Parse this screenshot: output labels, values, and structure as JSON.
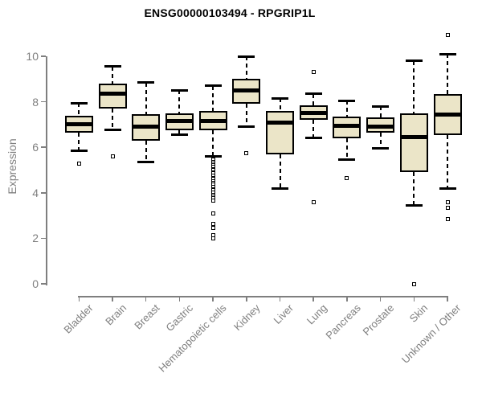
{
  "chart_data": {
    "type": "box",
    "title": "ENSG00000103494 - RPGRIP1L",
    "ylabel": "Expression",
    "xlabel": "",
    "ylim": [
      0,
      10
    ],
    "yticks": [
      0,
      2,
      4,
      6,
      8,
      10
    ],
    "grid": false,
    "legend_position": "none",
    "categories": [
      "Bladder",
      "Brain",
      "Breast",
      "Gastric",
      "Hematopoietic cells",
      "Kidney",
      "Liver",
      "Lung",
      "Pancreas",
      "Prostate",
      "Skin",
      "Unknown / Other"
    ],
    "boxes": [
      {
        "category": "Bladder",
        "whisker_low": 5.85,
        "q1": 6.65,
        "median": 7.0,
        "q3": 7.4,
        "whisker_high": 7.95,
        "outliers": [
          5.3
        ]
      },
      {
        "category": "Brain",
        "whisker_low": 6.75,
        "q1": 7.7,
        "median": 8.35,
        "q3": 8.8,
        "whisker_high": 9.55,
        "outliers": [
          5.6
        ]
      },
      {
        "category": "Breast",
        "whisker_low": 5.35,
        "q1": 6.3,
        "median": 6.9,
        "q3": 7.45,
        "whisker_high": 8.85,
        "outliers": []
      },
      {
        "category": "Gastric",
        "whisker_low": 6.55,
        "q1": 6.75,
        "median": 7.15,
        "q3": 7.5,
        "whisker_high": 8.5,
        "outliers": []
      },
      {
        "category": "Hematopoietic cells",
        "whisker_low": 5.6,
        "q1": 6.75,
        "median": 7.15,
        "q3": 7.6,
        "whisker_high": 8.7,
        "outliers": [
          5.45,
          5.35,
          5.3,
          5.2,
          5.15,
          5.05,
          5.0,
          4.9,
          4.85,
          4.75,
          4.65,
          4.6,
          4.5,
          4.45,
          4.35,
          4.25,
          4.15,
          4.1,
          4.0,
          3.9,
          3.85,
          3.75,
          3.65,
          3.1,
          2.65,
          2.45,
          2.15,
          2.0
        ]
      },
      {
        "category": "Kidney",
        "whisker_low": 6.9,
        "q1": 7.9,
        "median": 8.5,
        "q3": 9.0,
        "whisker_high": 10.0,
        "outliers": [
          5.75
        ]
      },
      {
        "category": "Liver",
        "whisker_low": 4.2,
        "q1": 5.7,
        "median": 7.1,
        "q3": 7.6,
        "whisker_high": 8.15,
        "outliers": []
      },
      {
        "category": "Lung",
        "whisker_low": 6.4,
        "q1": 7.2,
        "median": 7.5,
        "q3": 7.85,
        "whisker_high": 8.35,
        "outliers": [
          9.3,
          3.6
        ]
      },
      {
        "category": "Pancreas",
        "whisker_low": 5.45,
        "q1": 6.4,
        "median": 6.95,
        "q3": 7.35,
        "whisker_high": 8.05,
        "outliers": [
          4.65
        ]
      },
      {
        "category": "Prostate",
        "whisker_low": 5.95,
        "q1": 6.65,
        "median": 6.9,
        "q3": 7.3,
        "whisker_high": 7.8,
        "outliers": []
      },
      {
        "category": "Skin",
        "whisker_low": 3.45,
        "q1": 4.9,
        "median": 6.45,
        "q3": 7.5,
        "whisker_high": 9.8,
        "outliers": [
          0.0
        ]
      },
      {
        "category": "Unknown / Other",
        "whisker_low": 4.2,
        "q1": 6.55,
        "median": 7.45,
        "q3": 8.35,
        "whisker_high": 10.1,
        "outliers": [
          10.95,
          3.6,
          3.35,
          2.85
        ]
      }
    ],
    "colors": {
      "box_fill": "#EBE5C8",
      "box_border": "#000000",
      "median": "#000000",
      "whisker": "#000000",
      "axis": "#7f7f7f",
      "tick_label": "#7f7f7f",
      "title": "#000000"
    }
  }
}
